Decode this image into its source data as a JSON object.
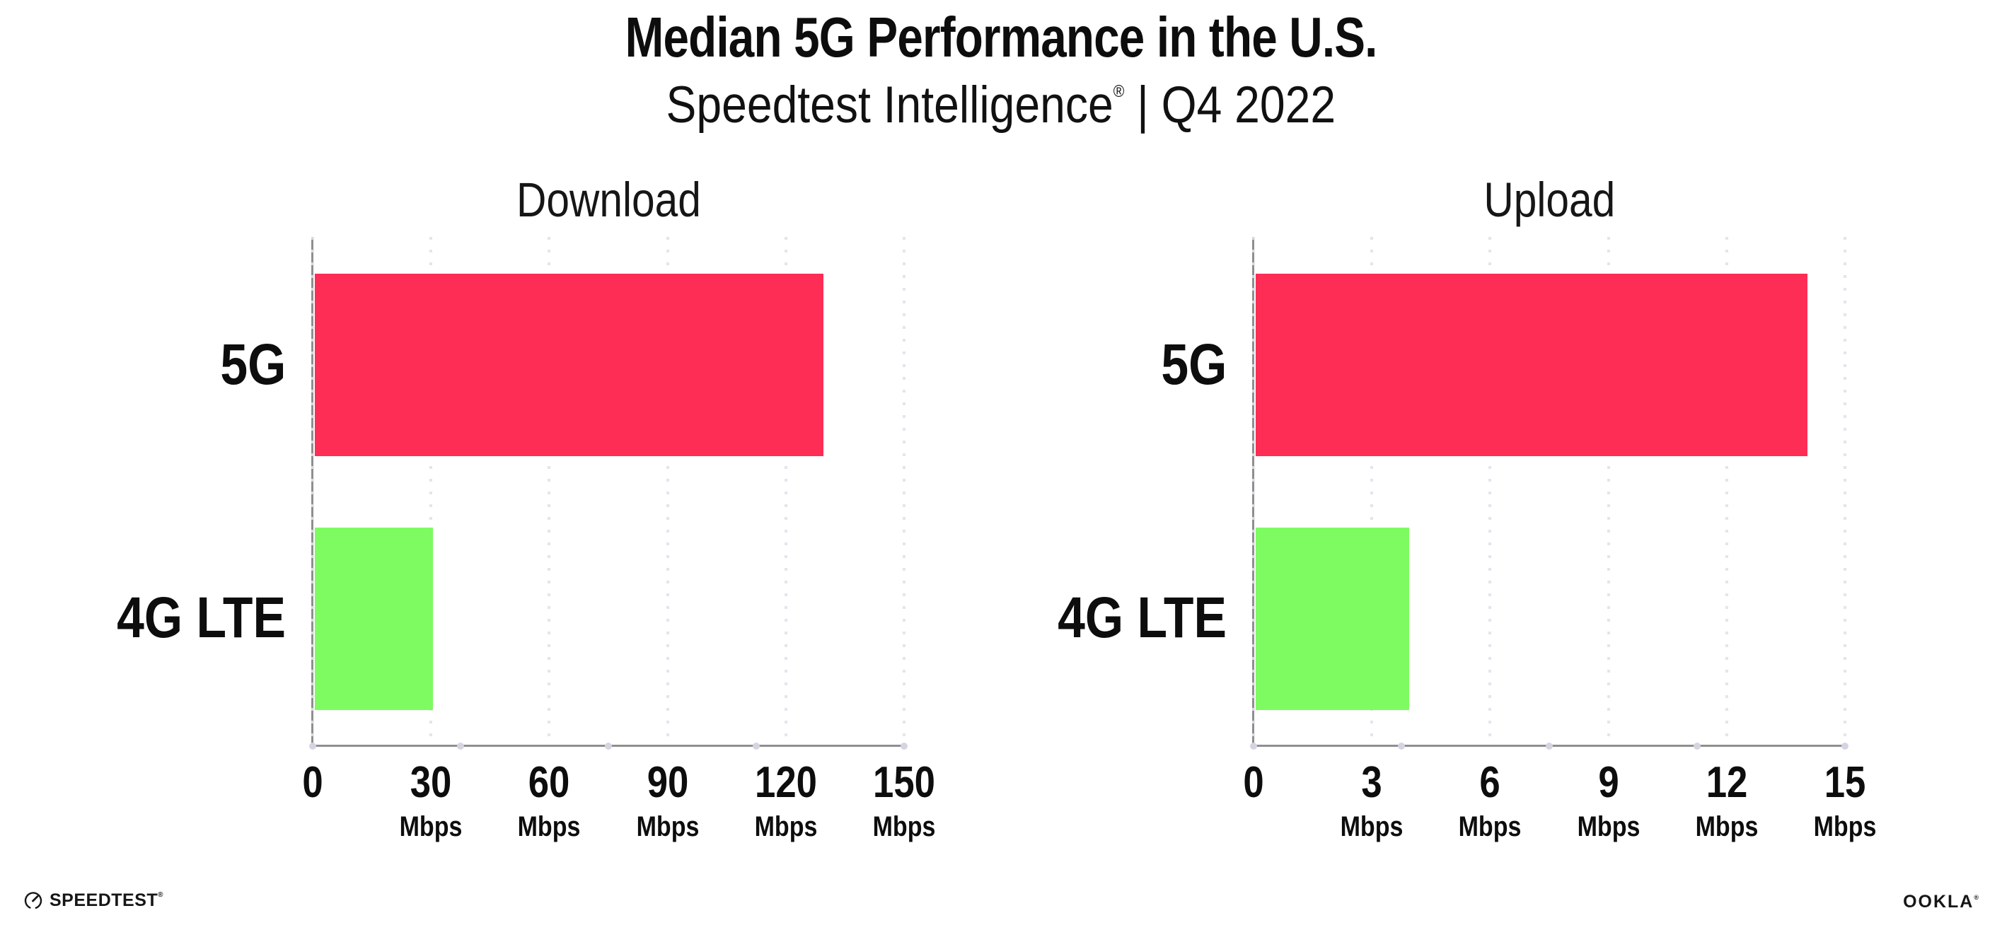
{
  "header": {
    "title": "Median 5G Performance in the U.S.",
    "subtitle_brand": "Speedtest Intelligence",
    "subtitle_trademark": "®",
    "subtitle_rest": " | Q4 2022"
  },
  "chart_data": [
    {
      "type": "bar",
      "orientation": "horizontal",
      "title": "Download",
      "categories": [
        "5G",
        "4G LTE"
      ],
      "values": [
        129,
        30
      ],
      "unit": "Mbps",
      "xlim": [
        0,
        150
      ],
      "xticks": [
        0,
        30,
        60,
        90,
        120,
        150
      ],
      "bar_colors": [
        "#FD2D56",
        "#7DFB61"
      ],
      "grid": "dotted vertical gridlines at every tick",
      "legend_position": "none"
    },
    {
      "type": "bar",
      "orientation": "horizontal",
      "title": "Upload",
      "categories": [
        "5G",
        "4G LTE"
      ],
      "values": [
        14,
        3.9
      ],
      "unit": "Mbps",
      "xlim": [
        0,
        15
      ],
      "xticks": [
        0,
        3,
        6,
        9,
        12,
        15
      ],
      "bar_colors": [
        "#FD2D56",
        "#7DFB61"
      ],
      "grid": "dotted vertical gridlines at every tick",
      "legend_position": "none"
    }
  ],
  "footer": {
    "speedtest_label": "SPEEDTEST",
    "speedtest_mark": "®",
    "speedtest_icon": "gauge-icon",
    "ookla_label": "OOKLA",
    "ookla_mark": "®"
  },
  "colors": {
    "bar_5g": "#FD2D56",
    "bar_4g_lte": "#7DFB61",
    "gridline": "#E4E4EE",
    "axis": "#8F8F8F",
    "axis_tick_dot": "#D5D5E1",
    "text": "#0D0D0D",
    "background": "#FFFFFF"
  }
}
